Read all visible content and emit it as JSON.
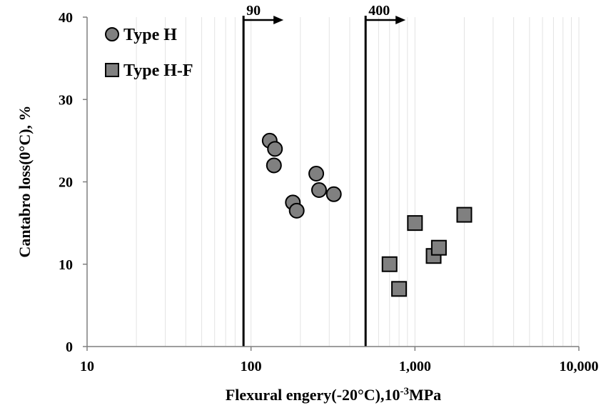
{
  "chart_data": {
    "type": "scatter",
    "title": "",
    "xlabel": "Flexural engery(-20°C),10-3MPa",
    "xlabel_parts": {
      "main": "Flexural engery(-20°C),10",
      "sup": "-3",
      "unit": "MPa"
    },
    "ylabel": "Cantabro loss(0°C), %",
    "xscale": "log",
    "xlim": [
      10,
      10000
    ],
    "ylim": [
      0,
      40
    ],
    "xticks": [
      10,
      100,
      1000,
      10000
    ],
    "xtick_labels": [
      "10",
      "100",
      "1,000",
      "10,000"
    ],
    "yticks": [
      0,
      10,
      20,
      30,
      40
    ],
    "ytick_labels": [
      "0",
      "10",
      "20",
      "30",
      "40"
    ],
    "grid": "vertical minor log gridlines",
    "legend_position": "top-left",
    "series": [
      {
        "name": "Type H",
        "marker": "circle",
        "color": "#808080",
        "points": [
          {
            "x": 130,
            "y": 25
          },
          {
            "x": 140,
            "y": 24
          },
          {
            "x": 138,
            "y": 22
          },
          {
            "x": 180,
            "y": 17.5
          },
          {
            "x": 190,
            "y": 16.5
          },
          {
            "x": 250,
            "y": 21
          },
          {
            "x": 260,
            "y": 19
          },
          {
            "x": 320,
            "y": 18.5
          }
        ]
      },
      {
        "name": "Type H-F",
        "marker": "square",
        "color": "#808080",
        "points": [
          {
            "x": 700,
            "y": 10
          },
          {
            "x": 800,
            "y": 7
          },
          {
            "x": 1000,
            "y": 15
          },
          {
            "x": 1300,
            "y": 11
          },
          {
            "x": 1400,
            "y": 12
          },
          {
            "x": 2000,
            "y": 16
          }
        ]
      }
    ],
    "annotations": [
      {
        "label": "90",
        "x": 90
      },
      {
        "label": "400",
        "x": 500
      }
    ]
  }
}
